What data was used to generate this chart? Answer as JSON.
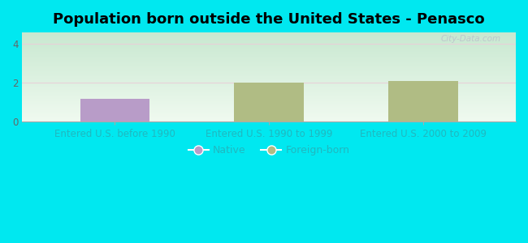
{
  "title": "Population born outside the United States - Penasco",
  "categories": [
    "Entered U.S. before 1990",
    "Entered U.S. 1990 to 1999",
    "Entered U.S. 2000 to 2009"
  ],
  "native_values": [
    1.2,
    0,
    0
  ],
  "foreign_values": [
    0,
    2.0,
    2.1
  ],
  "native_color": "#b89cc8",
  "foreign_color": "#b0bc84",
  "background_outer": "#00e8f0",
  "background_plot_top_left": "#c8e8d0",
  "background_plot_bottom_right": "#f0faf0",
  "ylim": [
    0,
    4.6
  ],
  "yticks": [
    0,
    2,
    4
  ],
  "bar_width": 0.45,
  "title_fontsize": 13,
  "tick_fontsize": 8.5,
  "xtick_color": "#20b8c0",
  "ytick_color": "#666666",
  "grid_color": "#e8d0d8",
  "legend_labels": [
    "Native",
    "Foreign-born"
  ],
  "watermark": "City-Data.com"
}
